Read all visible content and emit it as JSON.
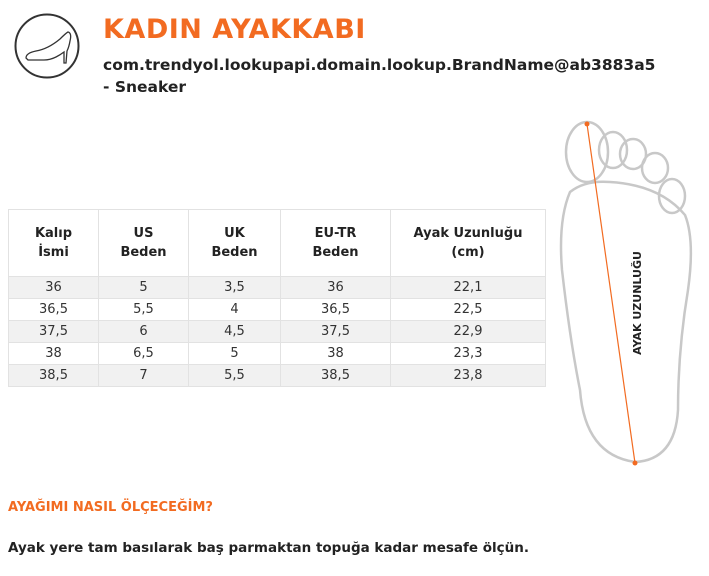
{
  "header": {
    "title": "KADIN AYAKKABI",
    "subtitle": "com.trendyol.lookupapi.domain.lookup.BrandName@ab3883a5 - Sneaker",
    "logo_icon": "high-heel-shoe-icon"
  },
  "size_table": {
    "headers": [
      [
        "Kalıp",
        "İsmi"
      ],
      [
        "US",
        "Beden"
      ],
      [
        "UK",
        "Beden"
      ],
      [
        "EU-TR",
        "Beden"
      ],
      [
        "Ayak Uzunluğu",
        "(cm)"
      ]
    ],
    "rows": [
      [
        "36",
        "5",
        "3,5",
        "36",
        "22,1"
      ],
      [
        "36,5",
        "5,5",
        "4",
        "36,5",
        "22,5"
      ],
      [
        "37,5",
        "6",
        "4,5",
        "37,5",
        "22,9"
      ],
      [
        "38",
        "6,5",
        "5",
        "38",
        "23,3"
      ],
      [
        "38,5",
        "7",
        "5,5",
        "38,5",
        "23,8"
      ]
    ]
  },
  "foot_diagram": {
    "label": "AYAK UZUNLUĞU",
    "line_color": "#f26b21"
  },
  "help": {
    "question": "AYAĞIMI NASIL ÖLÇECEĞİM?",
    "answer": "Ayak yere tam basılarak baş parmaktan topuğa kadar mesafe ölçün."
  },
  "colors": {
    "accent": "#f26b21",
    "row_alt": "#f1f1f1"
  }
}
